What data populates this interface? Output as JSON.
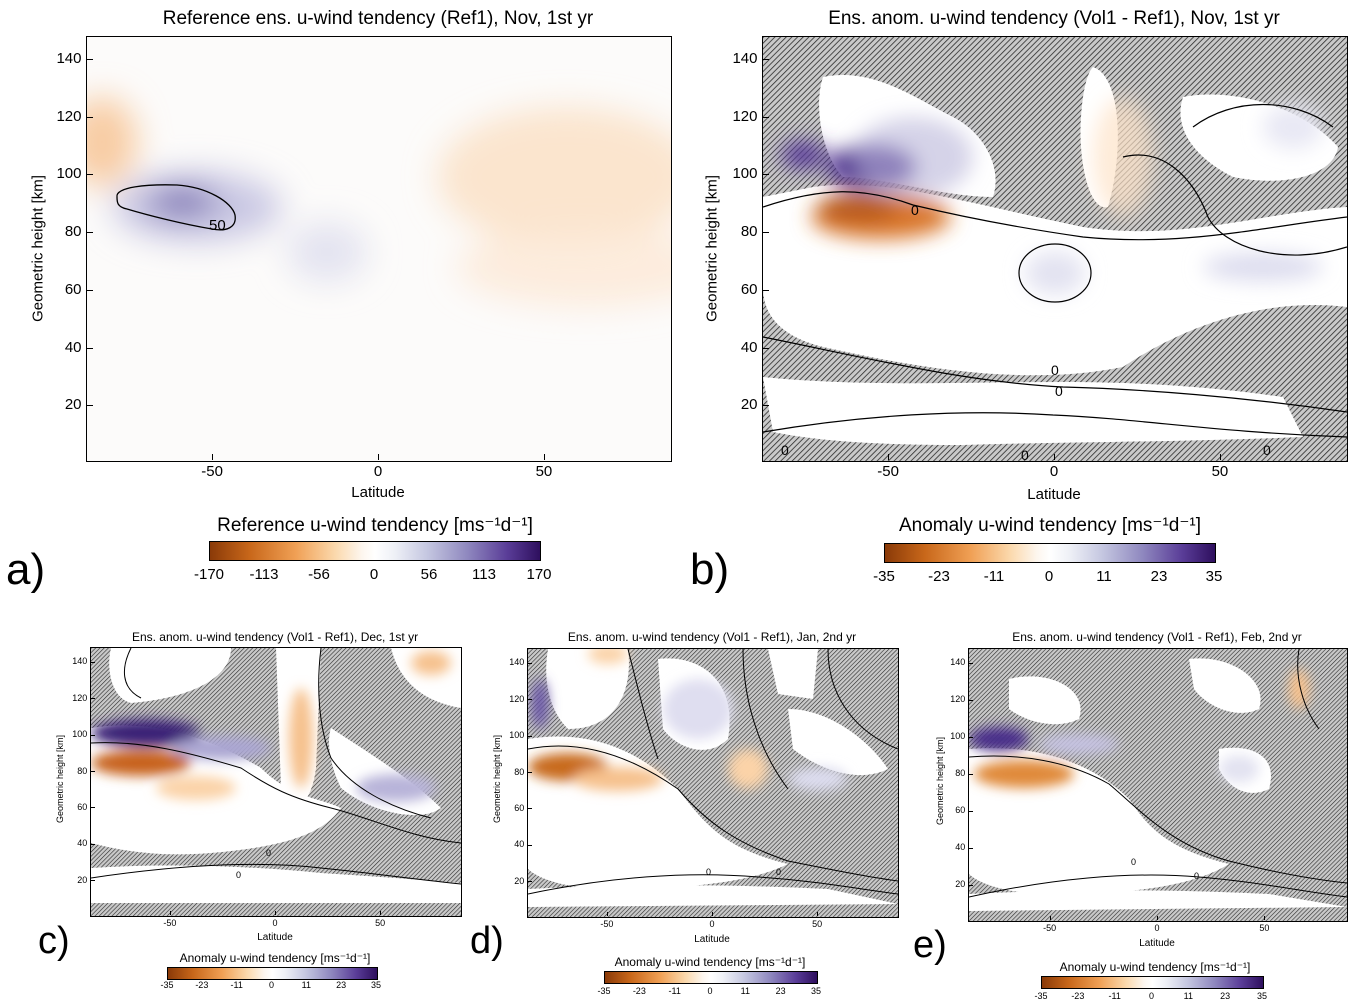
{
  "colors": {
    "orange_dark": "#8a3a08",
    "orange": "#f0a055",
    "white": "#ffffff",
    "purple": "#8f88bf",
    "purple_dark": "#2e0f5e",
    "hatch": "#2a2a2a"
  },
  "panels": [
    {
      "label": "a)",
      "title": "Reference ens. u-wind tendency (Ref1), Nov, 1st yr",
      "ylabel": "Geometric height [km]",
      "xlabel": "Latitude",
      "colorbar": {
        "title": "Reference u-wind tendency [ms⁻¹d⁻¹]",
        "ticks": [
          "-170",
          "-113",
          "-56",
          "0",
          "56",
          "113",
          "170"
        ]
      },
      "contour_labels": [
        "50"
      ]
    },
    {
      "label": "b)",
      "title": "Ens. anom. u-wind tendency (Vol1 - Ref1), Nov, 1st yr",
      "ylabel": "Geometric height [km]",
      "xlabel": "Latitude",
      "colorbar": {
        "title": "Anomaly u-wind tendency [ms⁻¹d⁻¹]",
        "ticks": [
          "-35",
          "-23",
          "-11",
          "0",
          "11",
          "23",
          "35"
        ]
      },
      "contour_labels": [
        "0",
        "0",
        "0",
        "0",
        "0",
        "0"
      ]
    },
    {
      "label": "c)",
      "title": "Ens. anom. u-wind tendency (Vol1 - Ref1), Dec, 1st yr",
      "ylabel": "Geometric height [km]",
      "xlabel": "Latitude",
      "colorbar": {
        "title": "Anomaly u-wind tendency [ms⁻¹d⁻¹]",
        "ticks": [
          "-35",
          "-23",
          "-11",
          "0",
          "11",
          "23",
          "35"
        ]
      },
      "contour_labels": [
        "0",
        "0"
      ]
    },
    {
      "label": "d)",
      "title": "Ens. anom. u-wind tendency (Vol1 - Ref1), Jan, 2nd yr",
      "ylabel": "Geometric height [km]",
      "xlabel": "Latitude",
      "colorbar": {
        "title": "Anomaly u-wind tendency [ms⁻¹d⁻¹]",
        "ticks": [
          "-35",
          "-23",
          "-11",
          "0",
          "11",
          "23",
          "35"
        ]
      },
      "contour_labels": [
        "0",
        "0"
      ]
    },
    {
      "label": "e)",
      "title": "Ens. anom. u-wind tendency (Vol1 - Ref1), Feb, 2nd yr",
      "ylabel": "Geometric height [km]",
      "xlabel": "Latitude",
      "colorbar": {
        "title": "Anomaly u-wind tendency [ms⁻¹d⁻¹]",
        "ticks": [
          "-35",
          "-23",
          "-11",
          "0",
          "11",
          "23",
          "35"
        ]
      },
      "contour_labels": [
        "0",
        "0"
      ]
    }
  ],
  "chart_data": [
    {
      "type": "heatmap",
      "title": "Reference ens. u-wind tendency (Ref1), Nov, 1st yr",
      "xlabel": "Latitude",
      "ylabel": "Geometric height [km]",
      "xlim": [
        -88,
        88
      ],
      "ylim": [
        1,
        148
      ],
      "xticks": [
        -50,
        0,
        50
      ],
      "yticks": [
        20,
        40,
        60,
        80,
        100,
        120,
        140
      ],
      "color_range": [
        -170,
        170
      ],
      "contour_levels": [
        50
      ],
      "features": [
        {
          "name": "maximum",
          "lat": -60,
          "height_km": 88,
          "value": 130
        },
        {
          "name": "weak negative",
          "lat": -85,
          "height_km": 110,
          "value": -30
        },
        {
          "name": "weak negative",
          "lat": 45,
          "height_km": 95,
          "value": -25
        },
        {
          "name": "weak positive",
          "lat": -12,
          "height_km": 72,
          "value": 25
        }
      ]
    },
    {
      "type": "heatmap",
      "title": "Ens. anom. u-wind tendency (Vol1 - Ref1), Nov, 1st yr",
      "xlabel": "Latitude",
      "ylabel": "Geometric height [km]",
      "xlim": [
        -88,
        88
      ],
      "ylim": [
        1,
        148
      ],
      "xticks": [
        -50,
        0,
        50
      ],
      "yticks": [
        20,
        40,
        60,
        80,
        100,
        120,
        140
      ],
      "color_range": [
        -35,
        35
      ],
      "contour_levels": [
        0
      ],
      "hatching": "not significant",
      "features": [
        {
          "name": "positive",
          "lat": -62,
          "height_km": 100,
          "value": 33
        },
        {
          "name": "positive",
          "lat": -83,
          "height_km": 104,
          "value": 25
        },
        {
          "name": "negative",
          "lat": -60,
          "height_km": 84,
          "value": -32
        },
        {
          "name": "weak positive",
          "lat": 5,
          "height_km": 68,
          "value": 8
        },
        {
          "name": "weak positive",
          "lat": 60,
          "height_km": 68,
          "value": 8
        },
        {
          "name": "weak positive",
          "lat": 75,
          "height_km": 118,
          "value": 8
        }
      ]
    },
    {
      "type": "heatmap",
      "title": "Ens. anom. u-wind tendency (Vol1 - Ref1), Dec, 1st yr",
      "xlabel": "Latitude",
      "ylabel": "Geometric height [km]",
      "xlim": [
        -88,
        88
      ],
      "ylim": [
        1,
        148
      ],
      "xticks": [
        -50,
        0,
        50
      ],
      "yticks": [
        20,
        40,
        60,
        80,
        100,
        120,
        140
      ],
      "color_range": [
        -35,
        35
      ],
      "contour_levels": [
        0
      ],
      "hatching": "not significant",
      "features": [
        {
          "name": "positive",
          "lat": -70,
          "height_km": 100,
          "value": 33
        },
        {
          "name": "negative",
          "lat": -65,
          "height_km": 83,
          "value": -28
        },
        {
          "name": "negative",
          "lat": 12,
          "height_km": 95,
          "value": -12
        },
        {
          "name": "positive",
          "lat": 55,
          "height_km": 75,
          "value": 12
        }
      ]
    },
    {
      "type": "heatmap",
      "title": "Ens. anom. u-wind tendency (Vol1 - Ref1), Jan, 2nd yr",
      "xlabel": "Latitude",
      "ylabel": "Geometric height [km]",
      "xlim": [
        -88,
        88
      ],
      "ylim": [
        1,
        148
      ],
      "xticks": [
        -50,
        0,
        50
      ],
      "yticks": [
        20,
        40,
        60,
        80,
        100,
        120,
        140
      ],
      "color_range": [
        -35,
        35
      ],
      "contour_levels": [
        0
      ],
      "hatching": "not significant",
      "features": [
        {
          "name": "positive",
          "lat": -83,
          "height_km": 105,
          "value": 18
        },
        {
          "name": "negative",
          "lat": -68,
          "height_km": 84,
          "value": -24
        },
        {
          "name": "weak positive",
          "lat": -20,
          "height_km": 100,
          "value": 8
        }
      ]
    },
    {
      "type": "heatmap",
      "title": "Ens. anom. u-wind tendency (Vol1 - Ref1), Feb, 2nd yr",
      "xlabel": "Latitude",
      "ylabel": "Geometric height [km]",
      "xlim": [
        -88,
        88
      ],
      "ylim": [
        1,
        148
      ],
      "xticks": [
        -50,
        0,
        50
      ],
      "yticks": [
        20,
        40,
        60,
        80,
        100,
        120,
        140
      ],
      "color_range": [
        -35,
        35
      ],
      "contour_levels": [
        0
      ],
      "hatching": "not significant",
      "features": [
        {
          "name": "positive",
          "lat": -72,
          "height_km": 100,
          "value": 28
        },
        {
          "name": "negative",
          "lat": -55,
          "height_km": 85,
          "value": -20
        }
      ]
    }
  ]
}
